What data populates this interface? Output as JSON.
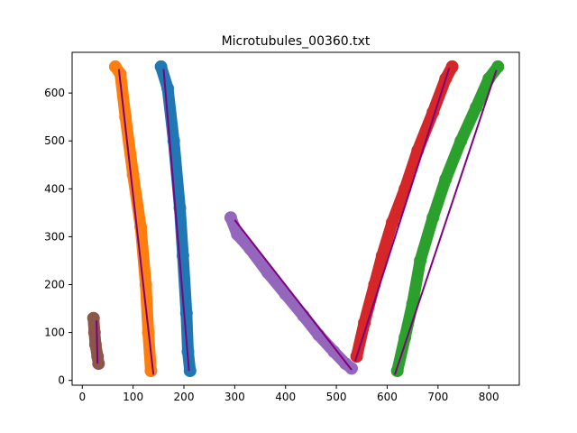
{
  "chart_data": {
    "type": "scatter",
    "title": "Microtubules_00360.txt",
    "xlabel": "",
    "ylabel": "",
    "xlim": [
      -20,
      860
    ],
    "ylim": [
      -10,
      685
    ],
    "xticks": [
      0,
      100,
      200,
      300,
      400,
      500,
      600,
      700,
      800
    ],
    "yticks": [
      0,
      100,
      200,
      300,
      400,
      500,
      600
    ],
    "grid": false,
    "fit_line_color": "#800080",
    "series": [
      {
        "color": "#1f77b4",
        "path": [
          [
            155,
            655
          ],
          [
            168,
            610
          ],
          [
            180,
            500
          ],
          [
            192,
            360
          ],
          [
            198,
            260
          ],
          [
            205,
            140
          ],
          [
            208,
            60
          ],
          [
            212,
            20
          ]
        ],
        "fit": [
          [
            160,
            650
          ],
          [
            210,
            20
          ]
        ]
      },
      {
        "color": "#ff7f0e",
        "path": [
          [
            65,
            655
          ],
          [
            75,
            640
          ],
          [
            85,
            550
          ],
          [
            100,
            430
          ],
          [
            115,
            320
          ],
          [
            125,
            200
          ],
          [
            130,
            100
          ],
          [
            135,
            20
          ]
        ],
        "fit": [
          [
            72,
            650
          ],
          [
            140,
            12
          ]
        ]
      },
      {
        "color": "#2ca02c",
        "path": [
          [
            620,
            20
          ],
          [
            635,
            90
          ],
          [
            650,
            160
          ],
          [
            665,
            250
          ],
          [
            690,
            340
          ],
          [
            715,
            420
          ],
          [
            745,
            500
          ],
          [
            775,
            570
          ],
          [
            800,
            630
          ],
          [
            818,
            655
          ]
        ],
        "fit": [
          [
            615,
            12
          ],
          [
            815,
            648
          ]
        ]
      },
      {
        "color": "#d62728",
        "path": [
          [
            540,
            50
          ],
          [
            555,
            120
          ],
          [
            575,
            200
          ],
          [
            590,
            260
          ],
          [
            610,
            330
          ],
          [
            635,
            400
          ],
          [
            660,
            480
          ],
          [
            690,
            560
          ],
          [
            715,
            630
          ],
          [
            728,
            655
          ]
        ],
        "fit": [
          [
            537,
            40
          ],
          [
            722,
            652
          ]
        ]
      },
      {
        "color": "#9467bd",
        "path": [
          [
            292,
            340
          ],
          [
            305,
            305
          ],
          [
            330,
            275
          ],
          [
            365,
            225
          ],
          [
            400,
            180
          ],
          [
            435,
            135
          ],
          [
            465,
            95
          ],
          [
            495,
            60
          ],
          [
            518,
            35
          ],
          [
            530,
            25
          ]
        ],
        "fit": [
          [
            300,
            335
          ],
          [
            530,
            22
          ]
        ]
      },
      {
        "color": "#8c564b",
        "path": [
          [
            22,
            130
          ],
          [
            24,
            100
          ],
          [
            26,
            75
          ],
          [
            30,
            50
          ],
          [
            32,
            35
          ]
        ],
        "fit": [
          [
            28,
            125
          ],
          [
            30,
            35
          ]
        ]
      }
    ]
  }
}
